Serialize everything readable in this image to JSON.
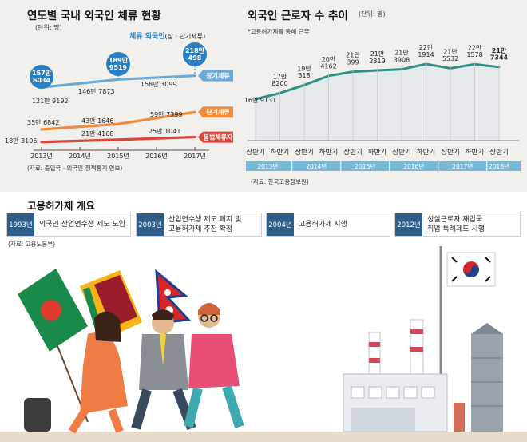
{
  "left_chart": {
    "title": "연도별 국내 외국인 체류 현황",
    "unit": "(단위: 명)",
    "legend_note_strong": "체류 외국인",
    "legend_note_rest": "(장 · 단기체류)",
    "source": "(자료: 출입국 · 외국인 정책통계 연보)"
  },
  "right_chart": {
    "title": "외국인 근로자 수 추이",
    "unit": "(단위: 명)",
    "note": "*고용허가제를 통해 근무",
    "source": "(자료: 한국고용정보원)"
  },
  "timeline": {
    "title": "고용허가제 개요",
    "source": "(자료: 고용노동부)",
    "items": [
      {
        "year": "1993년",
        "text": "외국인 산업연수생 제도 도입"
      },
      {
        "year": "2003년",
        "text": "산업연수생 제도 폐지 및\n고용허가제 추진 확정"
      },
      {
        "year": "2004년",
        "text": "고용허가제 시행"
      },
      {
        "year": "2012년",
        "text": "성실근로자 재입국\n취업 특례제도 시행"
      }
    ]
  },
  "colors": {
    "total": "#2a7fc4",
    "long": "#6aaad8",
    "short": "#f08a3c",
    "illegal": "#d9473c",
    "workers": "#2f8f86",
    "band": "#7ab8d8",
    "navy": "#2f5d8a"
  },
  "chart_data": [
    {
      "type": "line",
      "title": "연도별 국내 외국인 체류 현황",
      "ylabel": "(단위: 명)",
      "categories": [
        "2013년",
        "2014년",
        "2015년",
        "2016년",
        "2017년"
      ],
      "series": [
        {
          "name": "체류 외국인",
          "values": [
            1576034,
            null,
            1899519,
            null,
            2180498
          ],
          "labels": [
            "157만\n6034",
            "",
            "189만\n9519",
            "",
            "218만\n498"
          ]
        },
        {
          "name": "장기체류",
          "values": [
            1219192,
            null,
            1467873,
            null,
            1583099
          ],
          "labels": [
            "121만 9192",
            "",
            "146만 7873",
            "",
            "158만 3099"
          ]
        },
        {
          "name": "단기체류",
          "values": [
            356842,
            null,
            431646,
            null,
            597399
          ],
          "labels": [
            "35만 6842",
            "",
            "43만 1646",
            "",
            "59만 7399"
          ]
        },
        {
          "name": "불법체류자",
          "values": [
            183106,
            null,
            214168,
            null,
            251041
          ],
          "labels": [
            "18만 3106",
            "",
            "21만 4168",
            "",
            "25만 1041"
          ]
        }
      ]
    },
    {
      "type": "line",
      "title": "외국인 근로자 수 추이",
      "ylabel": "(단위: 명)",
      "categories": [
        "상반기",
        "하반기",
        "상반기",
        "하반기",
        "상반기",
        "하반기",
        "상반기",
        "하반기",
        "상반기",
        "하반기",
        "상반기"
      ],
      "year_groups": [
        "2013년",
        "2014년",
        "2015년",
        "2016년",
        "2017년",
        "2018년"
      ],
      "series": [
        {
          "name": "외국인 근로자",
          "values": [
            169131,
            178200,
            190318,
            204162,
            210399,
            212319,
            213908,
            221914,
            215532,
            221578,
            217344
          ],
          "labels": [
            "16만 9131",
            "17만\n8200",
            "19만\n318",
            "20만\n4162",
            "21만\n399",
            "21만\n2319",
            "21만\n3908",
            "22만\n1914",
            "21만\n5532",
            "22만\n1578",
            "21만\n7344"
          ]
        }
      ]
    }
  ]
}
